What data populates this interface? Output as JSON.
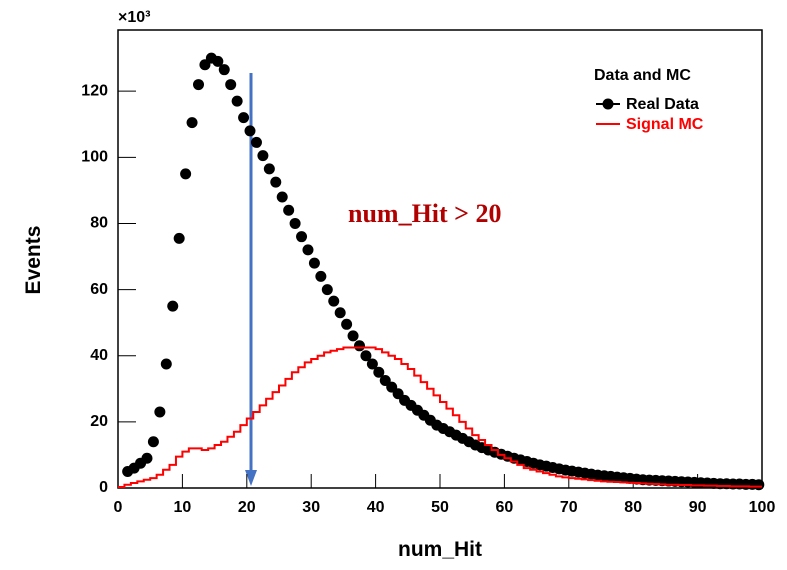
{
  "chart_data": {
    "type": "histogram",
    "y_scale_label": "×10³",
    "xlabel": "num_Hit",
    "ylabel": "Events",
    "annotation": "num_Hit  > 20",
    "legend_title": "Data and MC",
    "legend": "upper right",
    "xlim": [
      0,
      100
    ],
    "ylim": [
      0,
      138.5
    ],
    "xticks": [
      0,
      10,
      20,
      30,
      40,
      50,
      60,
      70,
      80,
      90,
      100
    ],
    "yticks": [
      0,
      20,
      40,
      60,
      80,
      100,
      120
    ],
    "bins": [
      0,
      1,
      2,
      3,
      4,
      5,
      6,
      7,
      8,
      9,
      10,
      11,
      12,
      13,
      14,
      15,
      16,
      17,
      18,
      19,
      20,
      21,
      22,
      23,
      24,
      25,
      26,
      27,
      28,
      29,
      30,
      31,
      32,
      33,
      34,
      35,
      36,
      37,
      38,
      39,
      40,
      41,
      42,
      43,
      44,
      45,
      46,
      47,
      48,
      49,
      50,
      51,
      52,
      53,
      54,
      55,
      56,
      57,
      58,
      59,
      60,
      61,
      62,
      63,
      64,
      65,
      66,
      67,
      68,
      69,
      70,
      71,
      72,
      73,
      74,
      75,
      76,
      77,
      78,
      79,
      80,
      81,
      82,
      83,
      84,
      85,
      86,
      87,
      88,
      89,
      90,
      91,
      92,
      93,
      94,
      95,
      96,
      97,
      98,
      99,
      100
    ],
    "series": [
      {
        "name": "Real Data",
        "style": "markers",
        "color": "#000000",
        "values": [
          null,
          5,
          6,
          7.5,
          9,
          14,
          23,
          37.5,
          55,
          75.5,
          95,
          110.5,
          122,
          128,
          130,
          129,
          126.5,
          122,
          117,
          112,
          108,
          104.5,
          100.5,
          96.5,
          92.5,
          88,
          84,
          80,
          76,
          72,
          68,
          64,
          60,
          56.5,
          53,
          49.5,
          46,
          43,
          40,
          37.5,
          35,
          32.5,
          30.5,
          28.5,
          26.5,
          25,
          23.5,
          22,
          20.5,
          19,
          18,
          17,
          16,
          15,
          14,
          13,
          12.2,
          11.5,
          10.8,
          10.2,
          9.6,
          9,
          8.5,
          8,
          7.5,
          7,
          6.6,
          6.2,
          5.8,
          5.4,
          5.1,
          4.8,
          4.5,
          4.2,
          3.9,
          3.7,
          3.5,
          3.3,
          3.1,
          2.9,
          2.7,
          2.5,
          2.4,
          2.3,
          2.2,
          2.1,
          2,
          1.9,
          1.8,
          1.7,
          1.6,
          1.5,
          1.4,
          1.3,
          1.3,
          1.2,
          1.2,
          1.1,
          1.1,
          1
        ]
      },
      {
        "name": "Signal MC",
        "style": "step",
        "color": "#ff0000",
        "values": [
          0.3,
          1,
          1.5,
          2,
          2.5,
          3,
          4,
          5.5,
          7,
          9.5,
          11,
          12,
          12,
          11.5,
          12,
          13,
          14,
          15.5,
          17,
          19,
          21,
          23,
          25,
          27,
          29,
          31,
          33,
          35,
          36.5,
          38,
          39,
          40,
          41,
          41.5,
          42,
          42.5,
          42.5,
          42.5,
          42.5,
          42.5,
          42,
          41,
          40,
          39,
          37.5,
          36,
          34,
          32,
          30,
          28,
          26,
          24,
          22,
          20,
          18,
          16,
          14.5,
          13,
          11.5,
          10,
          9,
          8,
          7,
          6,
          5.5,
          5,
          4.5,
          4,
          3.5,
          3.2,
          3,
          2.8,
          2.6,
          2.4,
          2.2,
          2,
          1.9,
          1.8,
          1.7,
          1.6,
          1.5,
          1.4,
          1.3,
          1.2,
          1.1,
          1,
          1,
          0.9,
          0.9,
          0.8,
          0.8,
          0.7,
          0.7,
          0.6,
          0.6,
          0.5,
          0.5,
          0.5,
          0.4,
          0.4
        ]
      }
    ]
  }
}
